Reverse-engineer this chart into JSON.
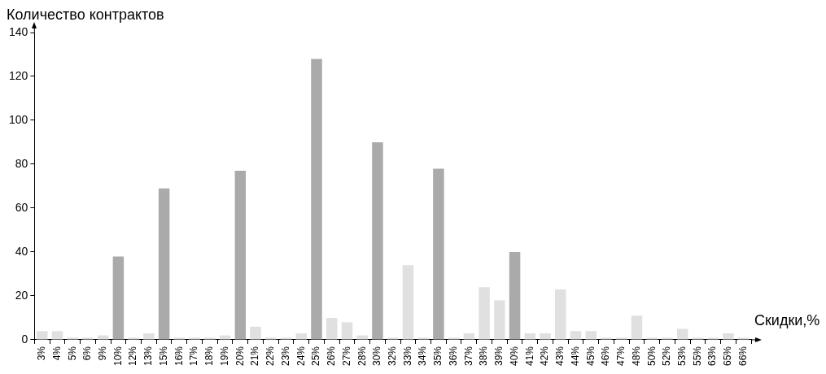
{
  "chart_data": {
    "type": "bar",
    "ylabel": "Количество контрактов",
    "xlabel": "Скидки,%",
    "categories": [
      "3%",
      "4%",
      "5%",
      "6%",
      "9%",
      "10%",
      "12%",
      "13%",
      "15%",
      "16%",
      "17%",
      "18%",
      "19%",
      "20%",
      "21%",
      "22%",
      "23%",
      "24%",
      "25%",
      "26%",
      "27%",
      "28%",
      "30%",
      "32%",
      "33%",
      "34%",
      "35%",
      "36%",
      "37%",
      "38%",
      "39%",
      "40%",
      "41%",
      "42%",
      "43%",
      "44%",
      "45%",
      "46%",
      "47%",
      "48%",
      "50%",
      "52%",
      "53%",
      "55%",
      "63%",
      "65%",
      "66%"
    ],
    "values": [
      4,
      4,
      1,
      1,
      2,
      38,
      1,
      3,
      69,
      1,
      1,
      1,
      2,
      77,
      6,
      1,
      1,
      3,
      128,
      10,
      8,
      2,
      90,
      1,
      34,
      1,
      78,
      1,
      3,
      24,
      18,
      40,
      3,
      3,
      23,
      4,
      4,
      1,
      1,
      11,
      1,
      1,
      5,
      1,
      1,
      3,
      1
    ],
    "colors": [
      "#e0e0e0",
      "#e0e0e0",
      "#e0e0e0",
      "#e0e0e0",
      "#e0e0e0",
      "#aaaaaa",
      "#e0e0e0",
      "#e0e0e0",
      "#aaaaaa",
      "#e0e0e0",
      "#e0e0e0",
      "#e0e0e0",
      "#e0e0e0",
      "#aaaaaa",
      "#e0e0e0",
      "#e0e0e0",
      "#e0e0e0",
      "#e0e0e0",
      "#aaaaaa",
      "#e0e0e0",
      "#e0e0e0",
      "#e0e0e0",
      "#aaaaaa",
      "#e0e0e0",
      "#e0e0e0",
      "#e0e0e0",
      "#aaaaaa",
      "#e0e0e0",
      "#e0e0e0",
      "#e0e0e0",
      "#e0e0e0",
      "#aaaaaa",
      "#e0e0e0",
      "#e0e0e0",
      "#e0e0e0",
      "#e0e0e0",
      "#e0e0e0",
      "#e0e0e0",
      "#e0e0e0",
      "#e0e0e0",
      "#e0e0e0",
      "#e0e0e0",
      "#e0e0e0",
      "#e0e0e0",
      "#e0e0e0",
      "#e0e0e0",
      "#e0e0e0"
    ],
    "ylim": [
      0,
      140
    ],
    "yticks": [
      0,
      20,
      40,
      60,
      80,
      100,
      120,
      140
    ],
    "legend": false,
    "grid": false
  }
}
